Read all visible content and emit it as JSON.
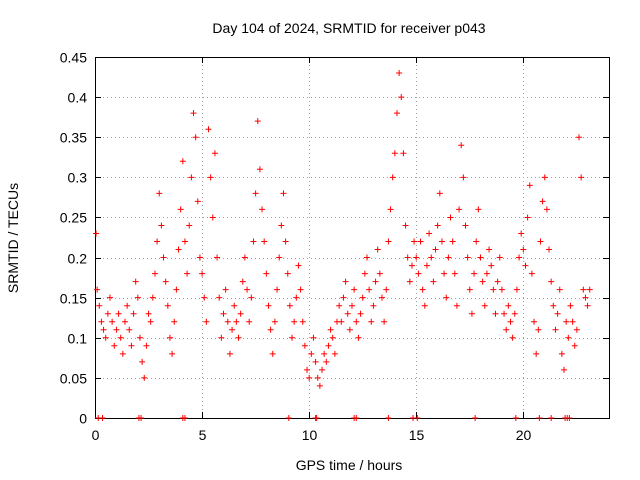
{
  "chart_data": {
    "type": "scatter",
    "title": "Day 104 of 2024, SRMTID for receiver p043",
    "xlabel": "GPS time / hours",
    "ylabel": "SRMTID / TECUs",
    "xlim": [
      0,
      24
    ],
    "ylim": [
      0,
      0.45
    ],
    "xticks": [
      0,
      5,
      10,
      15,
      20
    ],
    "yticks": [
      0,
      0.05,
      0.1,
      0.15,
      0.2,
      0.25,
      0.3,
      0.35,
      0.4,
      0.45
    ],
    "ytick_labels": [
      "0",
      "0.05",
      "0.1",
      "0.15",
      "0.2",
      "0.25",
      "0.3",
      "0.35",
      "0.4",
      "0.45"
    ],
    "grid": true,
    "marker": "+",
    "color": "#ff0000",
    "series": [
      {
        "name": "SRMTID",
        "points": [
          [
            0.05,
            0.23
          ],
          [
            0.1,
            0.16
          ],
          [
            0.2,
            0.14
          ],
          [
            0.3,
            0.12
          ],
          [
            0.4,
            0.11
          ],
          [
            0.5,
            0.1
          ],
          [
            0.6,
            0.13
          ],
          [
            0.7,
            0.15
          ],
          [
            0.8,
            0.12
          ],
          [
            0.9,
            0.09
          ],
          [
            1.0,
            0.11
          ],
          [
            1.1,
            0.13
          ],
          [
            1.2,
            0.1
          ],
          [
            1.3,
            0.08
          ],
          [
            1.4,
            0.12
          ],
          [
            1.5,
            0.14
          ],
          [
            1.6,
            0.11
          ],
          [
            1.7,
            0.09
          ],
          [
            1.8,
            0.13
          ],
          [
            1.9,
            0.17
          ],
          [
            2.0,
            0.15
          ],
          [
            2.1,
            0.1
          ],
          [
            2.2,
            0.07
          ],
          [
            2.3,
            0.05
          ],
          [
            2.4,
            0.09
          ],
          [
            2.5,
            0.13
          ],
          [
            2.6,
            0.12
          ],
          [
            2.7,
            0.15
          ],
          [
            2.8,
            0.18
          ],
          [
            2.9,
            0.22
          ],
          [
            3.0,
            0.28
          ],
          [
            3.1,
            0.24
          ],
          [
            3.2,
            0.2
          ],
          [
            3.3,
            0.17
          ],
          [
            3.4,
            0.14
          ],
          [
            3.5,
            0.1
          ],
          [
            3.6,
            0.08
          ],
          [
            3.7,
            0.12
          ],
          [
            3.8,
            0.16
          ],
          [
            3.9,
            0.21
          ],
          [
            4.0,
            0.26
          ],
          [
            4.1,
            0.32
          ],
          [
            4.2,
            0.22
          ],
          [
            4.3,
            0.18
          ],
          [
            4.4,
            0.24
          ],
          [
            4.5,
            0.3
          ],
          [
            4.6,
            0.38
          ],
          [
            4.7,
            0.35
          ],
          [
            4.8,
            0.27
          ],
          [
            4.9,
            0.2
          ],
          [
            5.0,
            0.18
          ],
          [
            5.1,
            0.15
          ],
          [
            5.2,
            0.12
          ],
          [
            5.3,
            0.36
          ],
          [
            5.4,
            0.3
          ],
          [
            5.5,
            0.25
          ],
          [
            5.6,
            0.33
          ],
          [
            5.7,
            0.2
          ],
          [
            5.8,
            0.15
          ],
          [
            5.9,
            0.1
          ],
          [
            6.0,
            0.13
          ],
          [
            6.1,
            0.16
          ],
          [
            6.2,
            0.12
          ],
          [
            6.3,
            0.08
          ],
          [
            6.4,
            0.11
          ],
          [
            6.5,
            0.14
          ],
          [
            6.6,
            0.12
          ],
          [
            6.7,
            0.1
          ],
          [
            6.8,
            0.13
          ],
          [
            6.9,
            0.17
          ],
          [
            7.0,
            0.2
          ],
          [
            7.1,
            0.16
          ],
          [
            7.2,
            0.12
          ],
          [
            7.3,
            0.15
          ],
          [
            7.4,
            0.22
          ],
          [
            7.5,
            0.28
          ],
          [
            7.6,
            0.37
          ],
          [
            7.7,
            0.31
          ],
          [
            7.8,
            0.26
          ],
          [
            7.9,
            0.22
          ],
          [
            8.0,
            0.18
          ],
          [
            8.1,
            0.14
          ],
          [
            8.2,
            0.11
          ],
          [
            8.3,
            0.08
          ],
          [
            8.4,
            0.12
          ],
          [
            8.5,
            0.16
          ],
          [
            8.6,
            0.2
          ],
          [
            8.7,
            0.24
          ],
          [
            8.8,
            0.28
          ],
          [
            8.9,
            0.22
          ],
          [
            9.0,
            0.18
          ],
          [
            9.1,
            0.14
          ],
          [
            9.2,
            0.1
          ],
          [
            9.3,
            0.12
          ],
          [
            9.4,
            0.15
          ],
          [
            9.5,
            0.19
          ],
          [
            9.6,
            0.16
          ],
          [
            9.7,
            0.12
          ],
          [
            9.8,
            0.09
          ],
          [
            9.9,
            0.06
          ],
          [
            10.0,
            0.05
          ],
          [
            10.1,
            0.08
          ],
          [
            10.2,
            0.1
          ],
          [
            10.3,
            0.07
          ],
          [
            10.4,
            0.05
          ],
          [
            10.5,
            0.04
          ],
          [
            10.6,
            0.06
          ],
          [
            10.7,
            0.08
          ],
          [
            10.8,
            0.07
          ],
          [
            10.9,
            0.09
          ],
          [
            11.0,
            0.11
          ],
          [
            11.1,
            0.1
          ],
          [
            11.2,
            0.08
          ],
          [
            11.3,
            0.12
          ],
          [
            11.4,
            0.14
          ],
          [
            11.5,
            0.12
          ],
          [
            11.6,
            0.15
          ],
          [
            11.7,
            0.17
          ],
          [
            11.8,
            0.13
          ],
          [
            11.9,
            0.11
          ],
          [
            12.0,
            0.14
          ],
          [
            12.1,
            0.16
          ],
          [
            12.2,
            0.12
          ],
          [
            12.3,
            0.1
          ],
          [
            12.4,
            0.13
          ],
          [
            12.5,
            0.15
          ],
          [
            12.6,
            0.18
          ],
          [
            12.7,
            0.2
          ],
          [
            12.8,
            0.16
          ],
          [
            12.9,
            0.12
          ],
          [
            13.0,
            0.14
          ],
          [
            13.1,
            0.17
          ],
          [
            13.2,
            0.21
          ],
          [
            13.3,
            0.18
          ],
          [
            13.4,
            0.15
          ],
          [
            13.5,
            0.12
          ],
          [
            13.6,
            0.16
          ],
          [
            13.7,
            0.22
          ],
          [
            13.8,
            0.26
          ],
          [
            13.9,
            0.3
          ],
          [
            14.0,
            0.33
          ],
          [
            14.1,
            0.38
          ],
          [
            14.2,
            0.43
          ],
          [
            14.3,
            0.4
          ],
          [
            14.4,
            0.33
          ],
          [
            14.5,
            0.24
          ],
          [
            14.6,
            0.2
          ],
          [
            14.7,
            0.17
          ],
          [
            14.8,
            0.19
          ],
          [
            14.9,
            0.22
          ],
          [
            15.0,
            0.2
          ],
          [
            15.1,
            0.18
          ],
          [
            15.2,
            0.22
          ],
          [
            15.3,
            0.16
          ],
          [
            15.4,
            0.14
          ],
          [
            15.5,
            0.19
          ],
          [
            15.6,
            0.23
          ],
          [
            15.7,
            0.2
          ],
          [
            15.8,
            0.17
          ],
          [
            15.9,
            0.21
          ],
          [
            16.0,
            0.24
          ],
          [
            16.1,
            0.28
          ],
          [
            16.2,
            0.22
          ],
          [
            16.3,
            0.18
          ],
          [
            16.4,
            0.15
          ],
          [
            16.5,
            0.2
          ],
          [
            16.6,
            0.25
          ],
          [
            16.7,
            0.22
          ],
          [
            16.8,
            0.18
          ],
          [
            16.9,
            0.14
          ],
          [
            17.0,
            0.26
          ],
          [
            17.1,
            0.34
          ],
          [
            17.2,
            0.3
          ],
          [
            17.3,
            0.24
          ],
          [
            17.4,
            0.2
          ],
          [
            17.5,
            0.16
          ],
          [
            17.6,
            0.13
          ],
          [
            17.7,
            0.18
          ],
          [
            17.8,
            0.22
          ],
          [
            17.9,
            0.26
          ],
          [
            18.0,
            0.2
          ],
          [
            18.1,
            0.17
          ],
          [
            18.2,
            0.14
          ],
          [
            18.3,
            0.18
          ],
          [
            18.4,
            0.21
          ],
          [
            18.5,
            0.19
          ],
          [
            18.6,
            0.16
          ],
          [
            18.7,
            0.13
          ],
          [
            18.8,
            0.17
          ],
          [
            18.9,
            0.2
          ],
          [
            19.0,
            0.16
          ],
          [
            19.1,
            0.13
          ],
          [
            19.2,
            0.11
          ],
          [
            19.3,
            0.14
          ],
          [
            19.4,
            0.12
          ],
          [
            19.5,
            0.1
          ],
          [
            19.6,
            0.13
          ],
          [
            19.7,
            0.16
          ],
          [
            19.8,
            0.2
          ],
          [
            19.9,
            0.23
          ],
          [
            20.0,
            0.21
          ],
          [
            20.1,
            0.19
          ],
          [
            20.2,
            0.25
          ],
          [
            20.3,
            0.29
          ],
          [
            20.4,
            0.18
          ],
          [
            20.5,
            0.12
          ],
          [
            20.6,
            0.08
          ],
          [
            20.7,
            0.11
          ],
          [
            20.8,
            0.22
          ],
          [
            20.9,
            0.27
          ],
          [
            21.0,
            0.3
          ],
          [
            21.1,
            0.26
          ],
          [
            21.2,
            0.21
          ],
          [
            21.3,
            0.17
          ],
          [
            21.4,
            0.14
          ],
          [
            21.5,
            0.11
          ],
          [
            21.6,
            0.13
          ],
          [
            21.7,
            0.16
          ],
          [
            21.8,
            0.08
          ],
          [
            21.9,
            0.06
          ],
          [
            22.0,
            0.12
          ],
          [
            22.1,
            0.1
          ],
          [
            22.2,
            0.14
          ],
          [
            22.3,
            0.12
          ],
          [
            22.4,
            0.09
          ],
          [
            22.5,
            0.11
          ],
          [
            22.6,
            0.35
          ],
          [
            22.7,
            0.3
          ],
          [
            22.8,
            0.16
          ],
          [
            22.9,
            0.15
          ],
          [
            23.0,
            0.14
          ],
          [
            23.1,
            0.16
          ]
        ]
      }
    ],
    "baseline_marks": [
      0.15,
      0.35,
      2.05,
      2.15,
      4.1,
      4.2,
      9.05,
      10.3,
      10.35,
      12.1,
      12.2,
      13.7,
      14.85,
      15.05,
      17.75,
      19.65,
      20.75,
      21.3,
      21.95,
      22.05,
      22.15
    ]
  }
}
